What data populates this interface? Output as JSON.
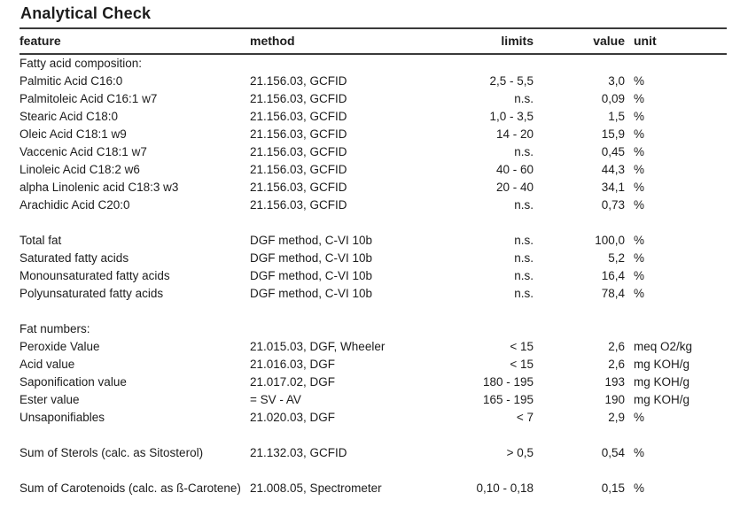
{
  "page": {
    "title": "Analytical Check"
  },
  "colors": {
    "text": "#1c1c1c",
    "rule": "#3a3a3a",
    "background": "#ffffff"
  },
  "table": {
    "columns": [
      {
        "key": "feature",
        "label": "feature"
      },
      {
        "key": "method",
        "label": "method"
      },
      {
        "key": "limits",
        "label": "limits"
      },
      {
        "key": "value",
        "label": "value"
      },
      {
        "key": "unit",
        "label": "unit"
      }
    ],
    "rows": [
      {
        "type": "section",
        "feature": "Fatty acid composition:",
        "method": "",
        "limits": "",
        "value": "",
        "unit": ""
      },
      {
        "type": "data",
        "feature": "Palmitic Acid C16:0",
        "method": "21.156.03, GCFID",
        "limits": "2,5 - 5,5",
        "value": "3,0",
        "unit": "%"
      },
      {
        "type": "data",
        "feature": "Palmitoleic Acid C16:1 w7",
        "method": "21.156.03, GCFID",
        "limits": "n.s.",
        "value": "0,09",
        "unit": "%"
      },
      {
        "type": "data",
        "feature": "Stearic Acid C18:0",
        "method": "21.156.03, GCFID",
        "limits": "1,0 - 3,5",
        "value": "1,5",
        "unit": "%"
      },
      {
        "type": "data",
        "feature": "Oleic Acid C18:1 w9",
        "method": "21.156.03, GCFID",
        "limits": "14 - 20",
        "value": "15,9",
        "unit": "%"
      },
      {
        "type": "data",
        "feature": "Vaccenic Acid C18:1 w7",
        "method": "21.156.03, GCFID",
        "limits": "n.s.",
        "value": "0,45",
        "unit": "%"
      },
      {
        "type": "data",
        "feature": "Linoleic Acid C18:2 w6",
        "method": "21.156.03, GCFID",
        "limits": "40 - 60",
        "value": "44,3",
        "unit": "%"
      },
      {
        "type": "data",
        "feature": "alpha Linolenic acid C18:3 w3",
        "method": "21.156.03, GCFID",
        "limits": "20 - 40",
        "value": "34,1",
        "unit": "%"
      },
      {
        "type": "data",
        "feature": "Arachidic Acid C20:0",
        "method": "21.156.03, GCFID",
        "limits": "n.s.",
        "value": "0,73",
        "unit": "%"
      },
      {
        "type": "spacer",
        "feature": "",
        "method": "",
        "limits": "",
        "value": "",
        "unit": ""
      },
      {
        "type": "data",
        "feature": "Total fat",
        "method": "DGF method, C-VI 10b",
        "limits": "n.s.",
        "value": "100,0",
        "unit": "%"
      },
      {
        "type": "data",
        "feature": "Saturated fatty acids",
        "method": "DGF method, C-VI 10b",
        "limits": "n.s.",
        "value": "5,2",
        "unit": "%"
      },
      {
        "type": "data",
        "feature": "Monounsaturated fatty acids",
        "method": "DGF method, C-VI 10b",
        "limits": "n.s.",
        "value": "16,4",
        "unit": "%"
      },
      {
        "type": "data",
        "feature": "Polyunsaturated fatty acids",
        "method": "DGF method, C-VI 10b",
        "limits": "n.s.",
        "value": "78,4",
        "unit": "%"
      },
      {
        "type": "spacer",
        "feature": "",
        "method": "",
        "limits": "",
        "value": "",
        "unit": ""
      },
      {
        "type": "section",
        "feature": "Fat numbers:",
        "method": "",
        "limits": "",
        "value": "",
        "unit": ""
      },
      {
        "type": "data",
        "feature": "Peroxide Value",
        "method": "21.015.03, DGF, Wheeler",
        "limits": "< 15",
        "value": "2,6",
        "unit": "meq O2/kg"
      },
      {
        "type": "data",
        "feature": "Acid value",
        "method": "21.016.03, DGF",
        "limits": "< 15",
        "value": "2,6",
        "unit": "mg KOH/g"
      },
      {
        "type": "data",
        "feature": "Saponification value",
        "method": "21.017.02, DGF",
        "limits": "180 - 195",
        "value": "193",
        "unit": "mg KOH/g"
      },
      {
        "type": "data",
        "feature": "Ester value",
        "method": "= SV - AV",
        "limits": "165 - 195",
        "value": "190",
        "unit": "mg KOH/g"
      },
      {
        "type": "data",
        "feature": "Unsaponifiables",
        "method": "21.020.03, DGF",
        "limits": "< 7",
        "value": "2,9",
        "unit": "%"
      },
      {
        "type": "spacer",
        "feature": "",
        "method": "",
        "limits": "",
        "value": "",
        "unit": ""
      },
      {
        "type": "data",
        "feature": "Sum of Sterols (calc. as Sitosterol)",
        "method": "21.132.03, GCFID",
        "limits": "> 0,5",
        "value": "0,54",
        "unit": "%"
      },
      {
        "type": "spacer",
        "feature": "",
        "method": "",
        "limits": "",
        "value": "",
        "unit": ""
      },
      {
        "type": "data",
        "feature": "Sum of Carotenoids (calc. as\nß-Carotene)",
        "method": "21.008.05, Spectrometer",
        "limits": "0,10 - 0,18",
        "value": "0,15",
        "unit": "%"
      }
    ]
  }
}
